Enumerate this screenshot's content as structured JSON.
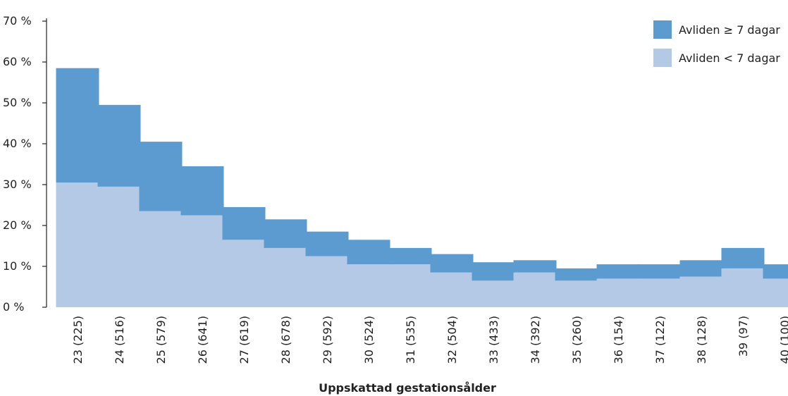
{
  "chart_data": {
    "type": "bar",
    "stacked": true,
    "title": "",
    "xlabel": "Uppskattad gestationsålder",
    "ylabel": "",
    "ylim": [
      0,
      70
    ],
    "y_ticks": [
      "0 %",
      "10 %",
      "20 %",
      "30 %",
      "40 %",
      "50 %",
      "60 %",
      "70 %"
    ],
    "y_tick_values": [
      0,
      10,
      20,
      30,
      40,
      50,
      60,
      70
    ],
    "grid": false,
    "legend_position": "top-right",
    "categories": [
      "23 (225)",
      "24 (516)",
      "25 (579)",
      "26 (641)",
      "27 (619)",
      "28 (678)",
      "29 (592)",
      "30 (524)",
      "31 (535)",
      "32 (504)",
      "33 (433)",
      "34 (392)",
      "35 (260)",
      "36 (154)",
      "37 (122)",
      "38 (128)",
      "39 (97)",
      "40 (100)"
    ],
    "series": [
      {
        "name": "Avliden < 7 dagar",
        "color": "#b3c9e6",
        "values": [
          30.5,
          29.5,
          23.5,
          22.5,
          16.5,
          14.5,
          12.5,
          10.5,
          10.5,
          8.5,
          6.5,
          8.5,
          6.5,
          7.0,
          7.0,
          7.5,
          9.5,
          7.0
        ]
      },
      {
        "name": "Avliden ≥ 7 dagar",
        "color": "#5c9bcf",
        "values": [
          28.0,
          20.0,
          17.0,
          12.0,
          8.0,
          7.0,
          6.0,
          6.0,
          4.0,
          4.5,
          4.5,
          3.0,
          3.0,
          3.5,
          3.5,
          4.0,
          5.0,
          3.5
        ]
      }
    ]
  }
}
